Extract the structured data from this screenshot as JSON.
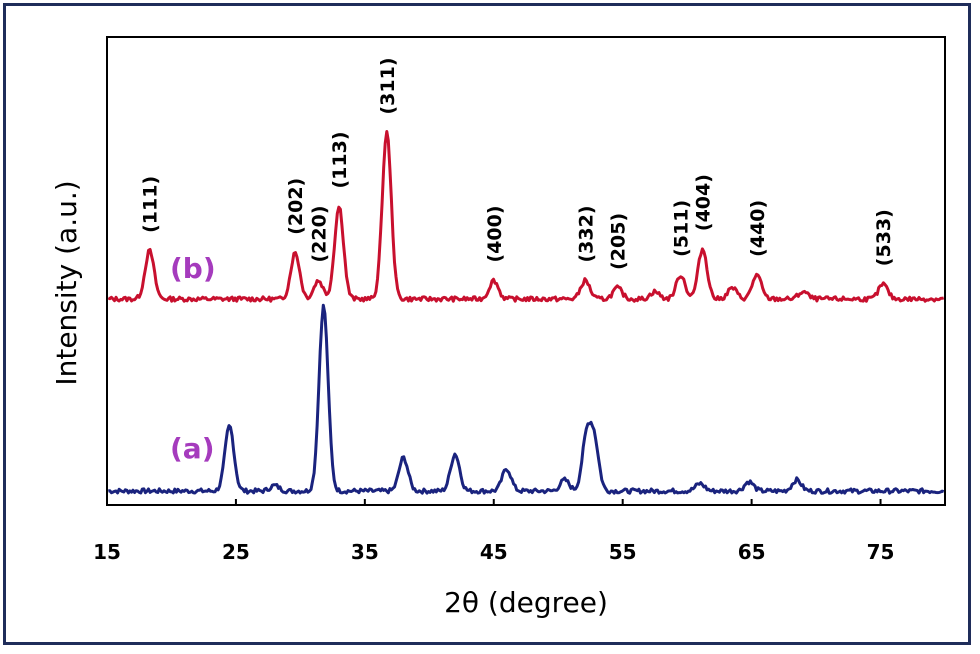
{
  "colors": {
    "series_a": "#1a237e",
    "series_b": "#c8102e",
    "series_label": "#a53bbd",
    "frame": "#1f2d5a"
  },
  "chart_data": {
    "type": "line",
    "xlabel": "2θ (degree)",
    "ylabel": "Intensity (a.u.)",
    "xlim": [
      15,
      80
    ],
    "xticks": [
      15,
      25,
      35,
      45,
      55,
      65,
      75
    ],
    "xtick_labels": [
      "15",
      "25",
      "35",
      "45",
      "55",
      "65",
      "75"
    ],
    "grid": false,
    "series": [
      {
        "name": "(a)",
        "baseline": 0.02,
        "noise": 0.012,
        "peaks": [
          {
            "x": 24.5,
            "y": 0.35
          },
          {
            "x": 28.0,
            "y": 0.03
          },
          {
            "x": 31.8,
            "y": 1.0
          },
          {
            "x": 38.0,
            "y": 0.18
          },
          {
            "x": 42.0,
            "y": 0.2
          },
          {
            "x": 46.0,
            "y": 0.12
          },
          {
            "x": 50.5,
            "y": 0.06
          },
          {
            "x": 52.2,
            "y": 0.28
          },
          {
            "x": 52.8,
            "y": 0.26
          },
          {
            "x": 61.0,
            "y": 0.04
          },
          {
            "x": 64.8,
            "y": 0.05
          },
          {
            "x": 68.5,
            "y": 0.06
          }
        ]
      },
      {
        "name": "(b)",
        "baseline": 0.06,
        "noise": 0.012,
        "peaks": [
          {
            "x": 18.3,
            "y": 0.26,
            "label": "(111)"
          },
          {
            "x": 29.6,
            "y": 0.25,
            "label": "(202)"
          },
          {
            "x": 31.4,
            "y": 0.1,
            "label": "(220)"
          },
          {
            "x": 33.0,
            "y": 0.5,
            "label": "(113)"
          },
          {
            "x": 36.7,
            "y": 0.9,
            "label": "(311)"
          },
          {
            "x": 45.0,
            "y": 0.1,
            "label": "(400)"
          },
          {
            "x": 52.1,
            "y": 0.1,
            "label": "(332)"
          },
          {
            "x": 54.6,
            "y": 0.06,
            "label": "(205)"
          },
          {
            "x": 59.5,
            "y": 0.13,
            "label": "(511)"
          },
          {
            "x": 61.2,
            "y": 0.27,
            "label": "(404)"
          },
          {
            "x": 65.4,
            "y": 0.13,
            "label": "(440)"
          },
          {
            "x": 75.2,
            "y": 0.08,
            "label": "(533)"
          },
          {
            "x": 63.5,
            "y": 0.06
          },
          {
            "x": 57.5,
            "y": 0.04
          },
          {
            "x": 69.0,
            "y": 0.04
          }
        ]
      }
    ]
  }
}
